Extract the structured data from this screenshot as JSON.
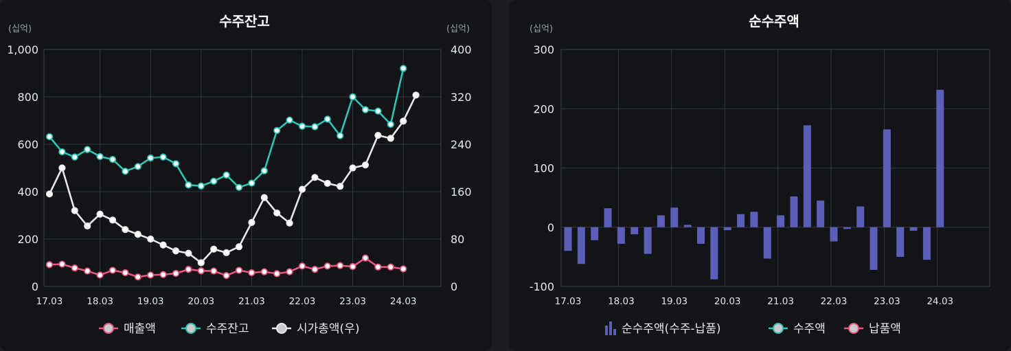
{
  "chart_data": [
    {
      "type": "line",
      "title": "수주잔고",
      "left_unit": "(십억)",
      "right_unit": "(십억)",
      "x_ticks": [
        "17.03",
        "18.03",
        "19.03",
        "20.03",
        "21.03",
        "22.03",
        "23.03",
        "24.03"
      ],
      "x_tick_index": [
        0,
        4,
        8,
        12,
        16,
        20,
        24,
        28
      ],
      "x_range": [
        0,
        30
      ],
      "grid": true,
      "legend_position": "bottom",
      "y_left": {
        "range": [
          0,
          1000
        ],
        "ticks": [
          0,
          200,
          400,
          600,
          800,
          1000
        ],
        "tick_labels": [
          "0",
          "200",
          "400",
          "600",
          "800",
          "1,000"
        ]
      },
      "y_right": {
        "range": [
          0,
          400
        ],
        "ticks": [
          0,
          80,
          160,
          240,
          320,
          400
        ],
        "tick_labels": [
          "0",
          "80",
          "160",
          "240",
          "320",
          "400"
        ]
      },
      "series": [
        {
          "name": "매출액",
          "axis": "left",
          "color": "#e8577d",
          "x": [
            0,
            1,
            2,
            3,
            4,
            5,
            6,
            7,
            8,
            9,
            10,
            11,
            12,
            13,
            14,
            15,
            16,
            17,
            18,
            19,
            20,
            21,
            22,
            23,
            24,
            25,
            26,
            27,
            28
          ],
          "values": [
            92,
            94,
            78,
            65,
            48,
            68,
            58,
            40,
            48,
            50,
            55,
            72,
            66,
            65,
            46,
            68,
            58,
            62,
            54,
            62,
            86,
            72,
            86,
            88,
            84,
            120,
            82,
            82,
            74
          ]
        },
        {
          "name": "수주잔고",
          "axis": "left",
          "color": "#2ec4b6",
          "x": [
            0,
            1,
            2,
            3,
            4,
            5,
            6,
            7,
            8,
            9,
            10,
            11,
            12,
            13,
            14,
            15,
            16,
            17,
            18,
            19,
            20,
            21,
            22,
            23,
            24,
            25,
            26,
            27,
            28
          ],
          "values": [
            632,
            568,
            546,
            578,
            548,
            536,
            486,
            506,
            542,
            546,
            518,
            428,
            424,
            444,
            470,
            418,
            436,
            488,
            658,
            702,
            676,
            674,
            706,
            636,
            800,
            746,
            740,
            684,
            920
          ]
        },
        {
          "name": "시가총액(우)",
          "axis": "right",
          "color": "#e8e8e8",
          "x": [
            0,
            1,
            2,
            3,
            4,
            5,
            6,
            7,
            8,
            9,
            10,
            11,
            12,
            13,
            14,
            15,
            16,
            17,
            18,
            19,
            20,
            21,
            22,
            23,
            24,
            25,
            26,
            27,
            28,
            29
          ],
          "values": [
            156,
            200,
            128,
            102,
            122,
            112,
            96,
            88,
            80,
            70,
            60,
            56,
            40,
            63,
            57,
            67,
            108,
            150,
            124,
            107,
            164,
            184,
            174,
            169,
            200,
            205,
            255,
            250,
            279,
            323
          ]
        }
      ]
    },
    {
      "type": "bar",
      "title": "순수주액",
      "unit": "(십억)",
      "x_ticks": [
        "17.03",
        "18.03",
        "19.03",
        "20.03",
        "21.03",
        "22.03",
        "23.03",
        "24.03"
      ],
      "x_tick_index": [
        0,
        4,
        8,
        12,
        16,
        20,
        24,
        28
      ],
      "x_range": [
        0,
        32
      ],
      "grid": true,
      "legend_position": "bottom",
      "y": {
        "range": [
          -100,
          300
        ],
        "ticks": [
          -100,
          0,
          100,
          200,
          300
        ],
        "tick_labels": [
          "-100",
          "0",
          "100",
          "200",
          "300"
        ]
      },
      "series": [
        {
          "name": "순수주액(수주-납품)",
          "color": "#5b5fb8",
          "x": [
            0,
            1,
            2,
            3,
            4,
            5,
            6,
            7,
            8,
            9,
            10,
            11,
            12,
            13,
            14,
            15,
            16,
            17,
            18,
            19,
            20,
            21,
            22,
            23,
            24,
            25,
            26,
            27,
            28
          ],
          "values": [
            -40,
            -62,
            -22,
            32,
            -28,
            -12,
            -45,
            20,
            33,
            4,
            -28,
            -88,
            -5,
            22,
            26,
            -53,
            20,
            52,
            172,
            45,
            -24,
            -3,
            35,
            -72,
            165,
            -50,
            -6,
            -55,
            232
          ]
        }
      ],
      "legend": [
        {
          "name": "순수주액(수주-납품)",
          "marker": "bar",
          "color": "#5b5fb8"
        },
        {
          "name": "수주액",
          "marker": "line",
          "color": "#2ec4b6"
        },
        {
          "name": "납품액",
          "marker": "line",
          "color": "#e8577d"
        }
      ]
    }
  ]
}
